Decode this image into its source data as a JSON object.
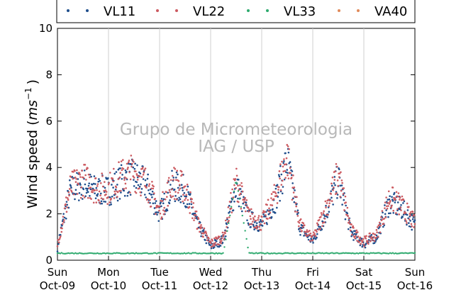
{
  "chart_data": {
    "type": "scatter",
    "ylabel_main": "Wind speed (",
    "ylabel_unit": "ms",
    "ylabel_exp": "−1",
    "ylabel_close": ")",
    "ylim": [
      0,
      10
    ],
    "y_ticks": [
      "0",
      "2",
      "4",
      "6",
      "8",
      "10"
    ],
    "x_ticks": [
      {
        "day": "Sun",
        "date": "Oct-09"
      },
      {
        "day": "Mon",
        "date": "Oct-10"
      },
      {
        "day": "Tue",
        "date": "Oct-11"
      },
      {
        "day": "Wed",
        "date": "Oct-12"
      },
      {
        "day": "Thu",
        "date": "Oct-13"
      },
      {
        "day": "Fri",
        "date": "Oct-14"
      },
      {
        "day": "Sat",
        "date": "Oct-15"
      },
      {
        "day": "Sun",
        "date": "Oct-16"
      }
    ],
    "grid": "x-only",
    "legend_position": "top",
    "watermark": [
      "Grupo de Micrometeorologia",
      "IAG / USP"
    ],
    "series": [
      {
        "name": "VL11",
        "color": "#1f4e8c",
        "x": [
          0,
          0.25,
          0.5,
          0.75,
          1,
          1.25,
          1.5,
          1.75,
          2,
          2.25,
          2.5,
          2.75,
          3,
          3.25,
          3.5,
          3.75,
          4,
          4.25,
          4.5,
          4.75,
          5,
          5.25,
          5.5,
          5.75,
          6,
          6.25,
          6.5,
          6.75,
          7
        ],
        "y": [
          0.6,
          3.0,
          3.3,
          3.0,
          3.0,
          3.4,
          3.6,
          3.2,
          2.0,
          3.2,
          3.0,
          1.5,
          0.6,
          0.9,
          3.2,
          1.8,
          1.5,
          2.5,
          4.3,
          1.4,
          0.8,
          2.0,
          3.5,
          1.2,
          0.7,
          1.0,
          2.5,
          2.2,
          1.5
        ]
      },
      {
        "name": "VL22",
        "color": "#cc5a60",
        "x": [
          0,
          0.25,
          0.5,
          0.75,
          1,
          1.25,
          1.5,
          1.75,
          2,
          2.25,
          2.5,
          2.75,
          3,
          3.25,
          3.5,
          3.75,
          4,
          4.25,
          4.5,
          4.75,
          5,
          5.25,
          5.5,
          5.75,
          6,
          6.25,
          6.5,
          6.75,
          7
        ],
        "y": [
          0.7,
          3.1,
          3.5,
          3.1,
          3.1,
          3.6,
          3.8,
          3.3,
          2.1,
          3.4,
          3.1,
          1.6,
          0.7,
          1.0,
          3.4,
          1.9,
          1.6,
          2.7,
          4.5,
          1.5,
          0.9,
          2.2,
          3.7,
          1.3,
          0.8,
          1.1,
          2.7,
          2.3,
          1.6
        ]
      },
      {
        "name": "VL33",
        "color": "#2eaa6e",
        "x": [
          0,
          0.25,
          0.5,
          0.75,
          1,
          1.25,
          1.5,
          1.75,
          2,
          2.25,
          2.5,
          2.75,
          3,
          3.25,
          3.5,
          3.75,
          4,
          4.25,
          4.5,
          4.75,
          5,
          5.25,
          5.5,
          5.75,
          6,
          6.25,
          6.5,
          6.75,
          7
        ],
        "y": [
          0.3,
          0.3,
          0.3,
          0.3,
          0.3,
          0.3,
          0.3,
          0.3,
          0.3,
          0.3,
          0.3,
          0.3,
          0.3,
          0.3,
          3.5,
          0.3,
          0.3,
          0.3,
          0.3,
          0.3,
          0.3,
          0.3,
          0.3,
          0.3,
          0.3,
          0.3,
          0.3,
          0.3,
          0.3
        ]
      },
      {
        "name": "VA40",
        "color": "#e08a5a",
        "x": [],
        "y": []
      }
    ]
  }
}
